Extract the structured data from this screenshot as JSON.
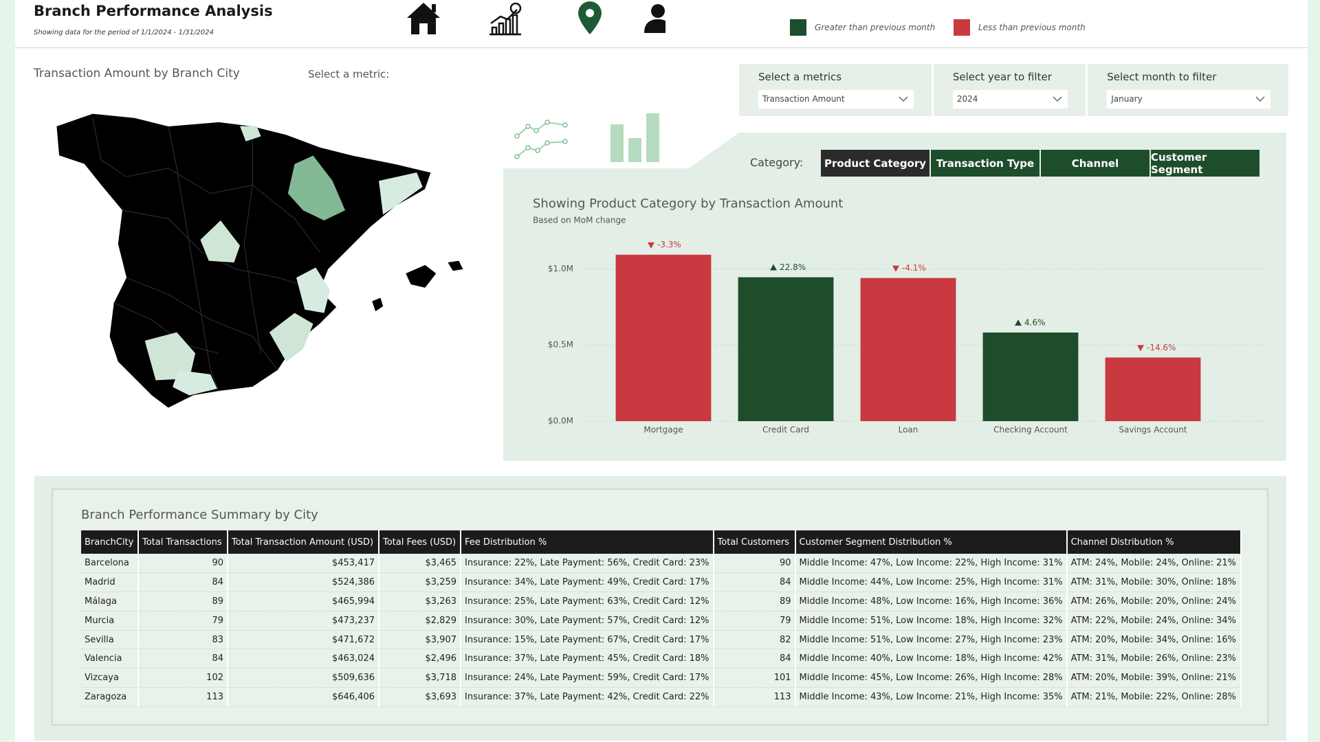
{
  "header": {
    "title": "Branch Performance Analysis",
    "subtitle": "Showing data for the period of 1/1/2024 - 1/31/2024",
    "legend": [
      {
        "label": "Greater than previous month",
        "color": "#1e4d2b"
      },
      {
        "label": "Less than previous month",
        "color": "#c9393f"
      }
    ]
  },
  "map": {
    "title": "Transaction Amount by Branch City",
    "metric_label": "Select a metric:"
  },
  "filters": [
    {
      "label": "Select a metrics",
      "value": "Transaction Amount"
    },
    {
      "label": "Select year to filter",
      "value": "2024"
    },
    {
      "label": "Select month to filter",
      "value": "January"
    }
  ],
  "category_selector": {
    "label": "Category:",
    "options": [
      "Product Category",
      "Transaction Type",
      "Channel",
      "Customer Segment"
    ],
    "selected": 0
  },
  "chart_data": {
    "type": "bar",
    "title": "Showing Product Category by Transaction Amount",
    "subtitle": "Based on MoM change",
    "categories": [
      "Mortgage",
      "Credit Card",
      "Loan",
      "Checking Account",
      "Savings Account"
    ],
    "values": [
      1.093,
      0.945,
      0.94,
      0.582,
      0.418
    ],
    "mom_change": [
      -3.3,
      22.8,
      -4.1,
      4.6,
      -14.6
    ],
    "mom_change_labels": [
      "-3.3%",
      "22.8%",
      "-4.1%",
      "4.6%",
      "-14.6%"
    ],
    "ylim": [
      0,
      1.2
    ],
    "yticks": [
      {
        "value": 0,
        "label": "$0.0M"
      },
      {
        "value": 0.5,
        "label": "$0.5M"
      },
      {
        "value": 1,
        "label": "$1.0M"
      }
    ],
    "grid": true
  },
  "table": {
    "title": "Branch Performance Summary by City",
    "headers": [
      "BranchCity",
      "Total Transactions",
      "Total Transaction Amount (USD)",
      "Total Fees (USD)",
      "Fee Distribution %",
      "Total Customers",
      "Customer Segment Distribution %",
      "Channel Distribution %"
    ],
    "rows": [
      [
        "Barcelona",
        "90",
        "$453,417",
        "$3,465",
        "Insurance: 22%, Late Payment: 56%, Credit Card: 23%",
        "90",
        "Middle Income: 47%, Low Income: 22%, High Income: 31%",
        "ATM: 24%, Mobile: 24%, Online: 21%"
      ],
      [
        "Madrid",
        "84",
        "$524,386",
        "$3,259",
        "Insurance: 34%, Late Payment: 49%, Credit Card: 17%",
        "84",
        "Middle Income: 44%, Low Income: 25%, High Income: 31%",
        "ATM: 31%, Mobile: 30%, Online: 18%"
      ],
      [
        "Málaga",
        "89",
        "$465,994",
        "$3,263",
        "Insurance: 25%, Late Payment: 63%, Credit Card: 12%",
        "89",
        "Middle Income: 48%, Low Income: 16%, High Income: 36%",
        "ATM: 26%, Mobile: 20%, Online: 24%"
      ],
      [
        "Murcia",
        "79",
        "$473,237",
        "$2,829",
        "Insurance: 30%, Late Payment: 57%, Credit Card: 12%",
        "79",
        "Middle Income: 51%, Low Income: 18%, High Income: 32%",
        "ATM: 22%, Mobile: 24%, Online: 34%"
      ],
      [
        "Sevilla",
        "83",
        "$471,672",
        "$3,907",
        "Insurance: 15%, Late Payment: 67%, Credit Card: 17%",
        "82",
        "Middle Income: 51%, Low Income: 27%, High Income: 23%",
        "ATM: 20%, Mobile: 34%, Online: 16%"
      ],
      [
        "Valencia",
        "84",
        "$463,024",
        "$2,496",
        "Insurance: 37%, Late Payment: 45%, Credit Card: 18%",
        "84",
        "Middle Income: 40%, Low Income: 18%, High Income: 42%",
        "ATM: 31%, Mobile: 26%, Online: 23%"
      ],
      [
        "Vizcaya",
        "102",
        "$509,636",
        "$3,718",
        "Insurance: 24%, Late Payment: 59%, Credit Card: 17%",
        "101",
        "Middle Income: 45%, Low Income: 26%, High Income: 28%",
        "ATM: 20%, Mobile: 39%, Online: 21%"
      ],
      [
        "Zaragoza",
        "113",
        "$646,406",
        "$3,693",
        "Insurance: 37%, Late Payment: 42%, Credit Card: 22%",
        "113",
        "Middle Income: 43%, Low Income: 21%, High Income: 35%",
        "ATM: 21%, Mobile: 22%, Online: 28%"
      ]
    ]
  }
}
